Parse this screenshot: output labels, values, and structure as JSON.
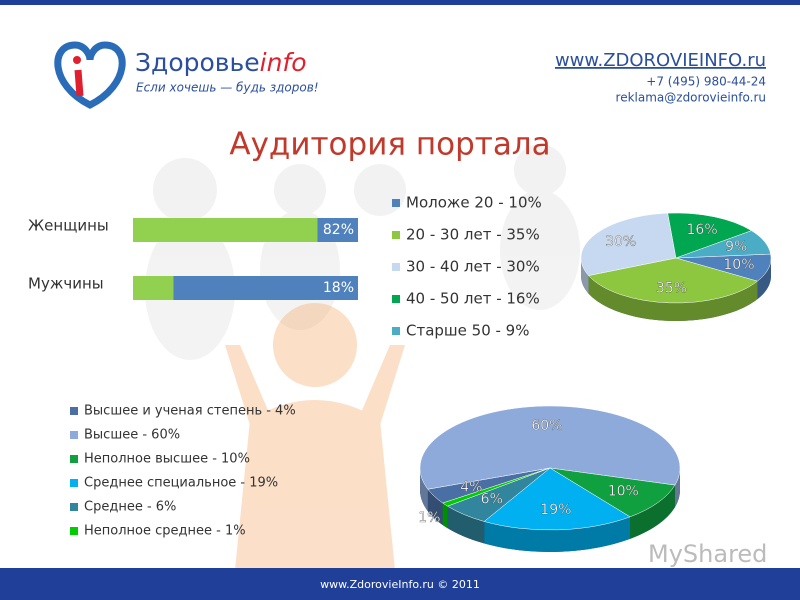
{
  "header": {
    "logo_main": "Здоровье",
    "logo_accent": "info",
    "slogan": "Если хочешь — будь здоров!",
    "url": "www.ZDOROVIEINFO.ru",
    "phone": "+7 (495) 980-44-24",
    "email": "reklama@zdorovieinfo.ru"
  },
  "title": "Аудитория портала",
  "chart_data": [
    {
      "type": "bar",
      "categories": [
        "Женщины",
        "Мужчины"
      ],
      "values": [
        82,
        18
      ],
      "value_labels": [
        "82%",
        "18%"
      ],
      "xlim": [
        0,
        100
      ],
      "color": "#92d050",
      "track_color": "#4f81bd"
    },
    {
      "type": "pie",
      "categories": [
        "Моложе 20 - 10%",
        "20 - 30 лет  - 35%",
        "30 - 40 лет  - 30%",
        "40 - 50 лет  - 16%",
        "Старше 50   - 9%"
      ],
      "values": [
        10,
        35,
        30,
        16,
        9
      ],
      "value_labels": [
        "10%",
        "35%",
        "30%",
        "16%",
        "9%"
      ],
      "colors": [
        "#4f81bd",
        "#8dc63f",
        "#c6d9f1",
        "#00a650",
        "#4bacc6"
      ]
    },
    {
      "type": "pie",
      "categories": [
        "Высшее и ученая степень - 4%",
        "Высшее - 60%",
        "Неполное высшее - 10%",
        "Среднее специальное - 19%",
        "Среднее - 6%",
        "Неполное среднее - 1%"
      ],
      "values": [
        4,
        60,
        10,
        19,
        6,
        1
      ],
      "value_labels": [
        "4%",
        "60%",
        "10%",
        "19%",
        "6%",
        "1%"
      ],
      "colors": [
        "#4a6fa5",
        "#8eaadb",
        "#10a040",
        "#00b0f0",
        "#31859c",
        "#00cc00"
      ]
    }
  ],
  "footer": "www.ZdorovieInfo.ru © 2011",
  "watermark": "MyShared"
}
